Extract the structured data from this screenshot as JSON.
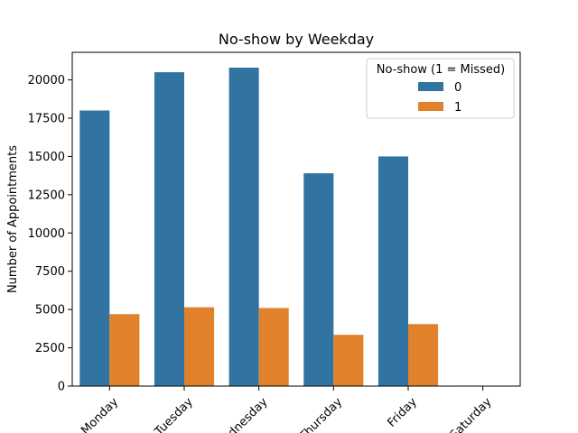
{
  "chart_data": {
    "type": "bar",
    "title": "No-show by Weekday",
    "xlabel": "",
    "ylabel": "Number of Appointments",
    "categories": [
      "Monday",
      "Tuesday",
      "Wednesday",
      "Thursday",
      "Friday",
      "Saturday"
    ],
    "series": [
      {
        "name": "0",
        "values": [
          18000,
          20500,
          20800,
          13900,
          15000,
          30
        ],
        "color": "#3274a1"
      },
      {
        "name": "1",
        "values": [
          4700,
          5150,
          5100,
          3350,
          4050,
          9
        ],
        "color": "#e1812c"
      }
    ],
    "ylim": [
      0,
      21800
    ],
    "yticks": [
      0,
      2500,
      5000,
      7500,
      10000,
      12500,
      15000,
      17500,
      20000
    ],
    "legend": {
      "title": "No-show (1 = Missed)",
      "placement": "top-right"
    },
    "grid": false
  }
}
